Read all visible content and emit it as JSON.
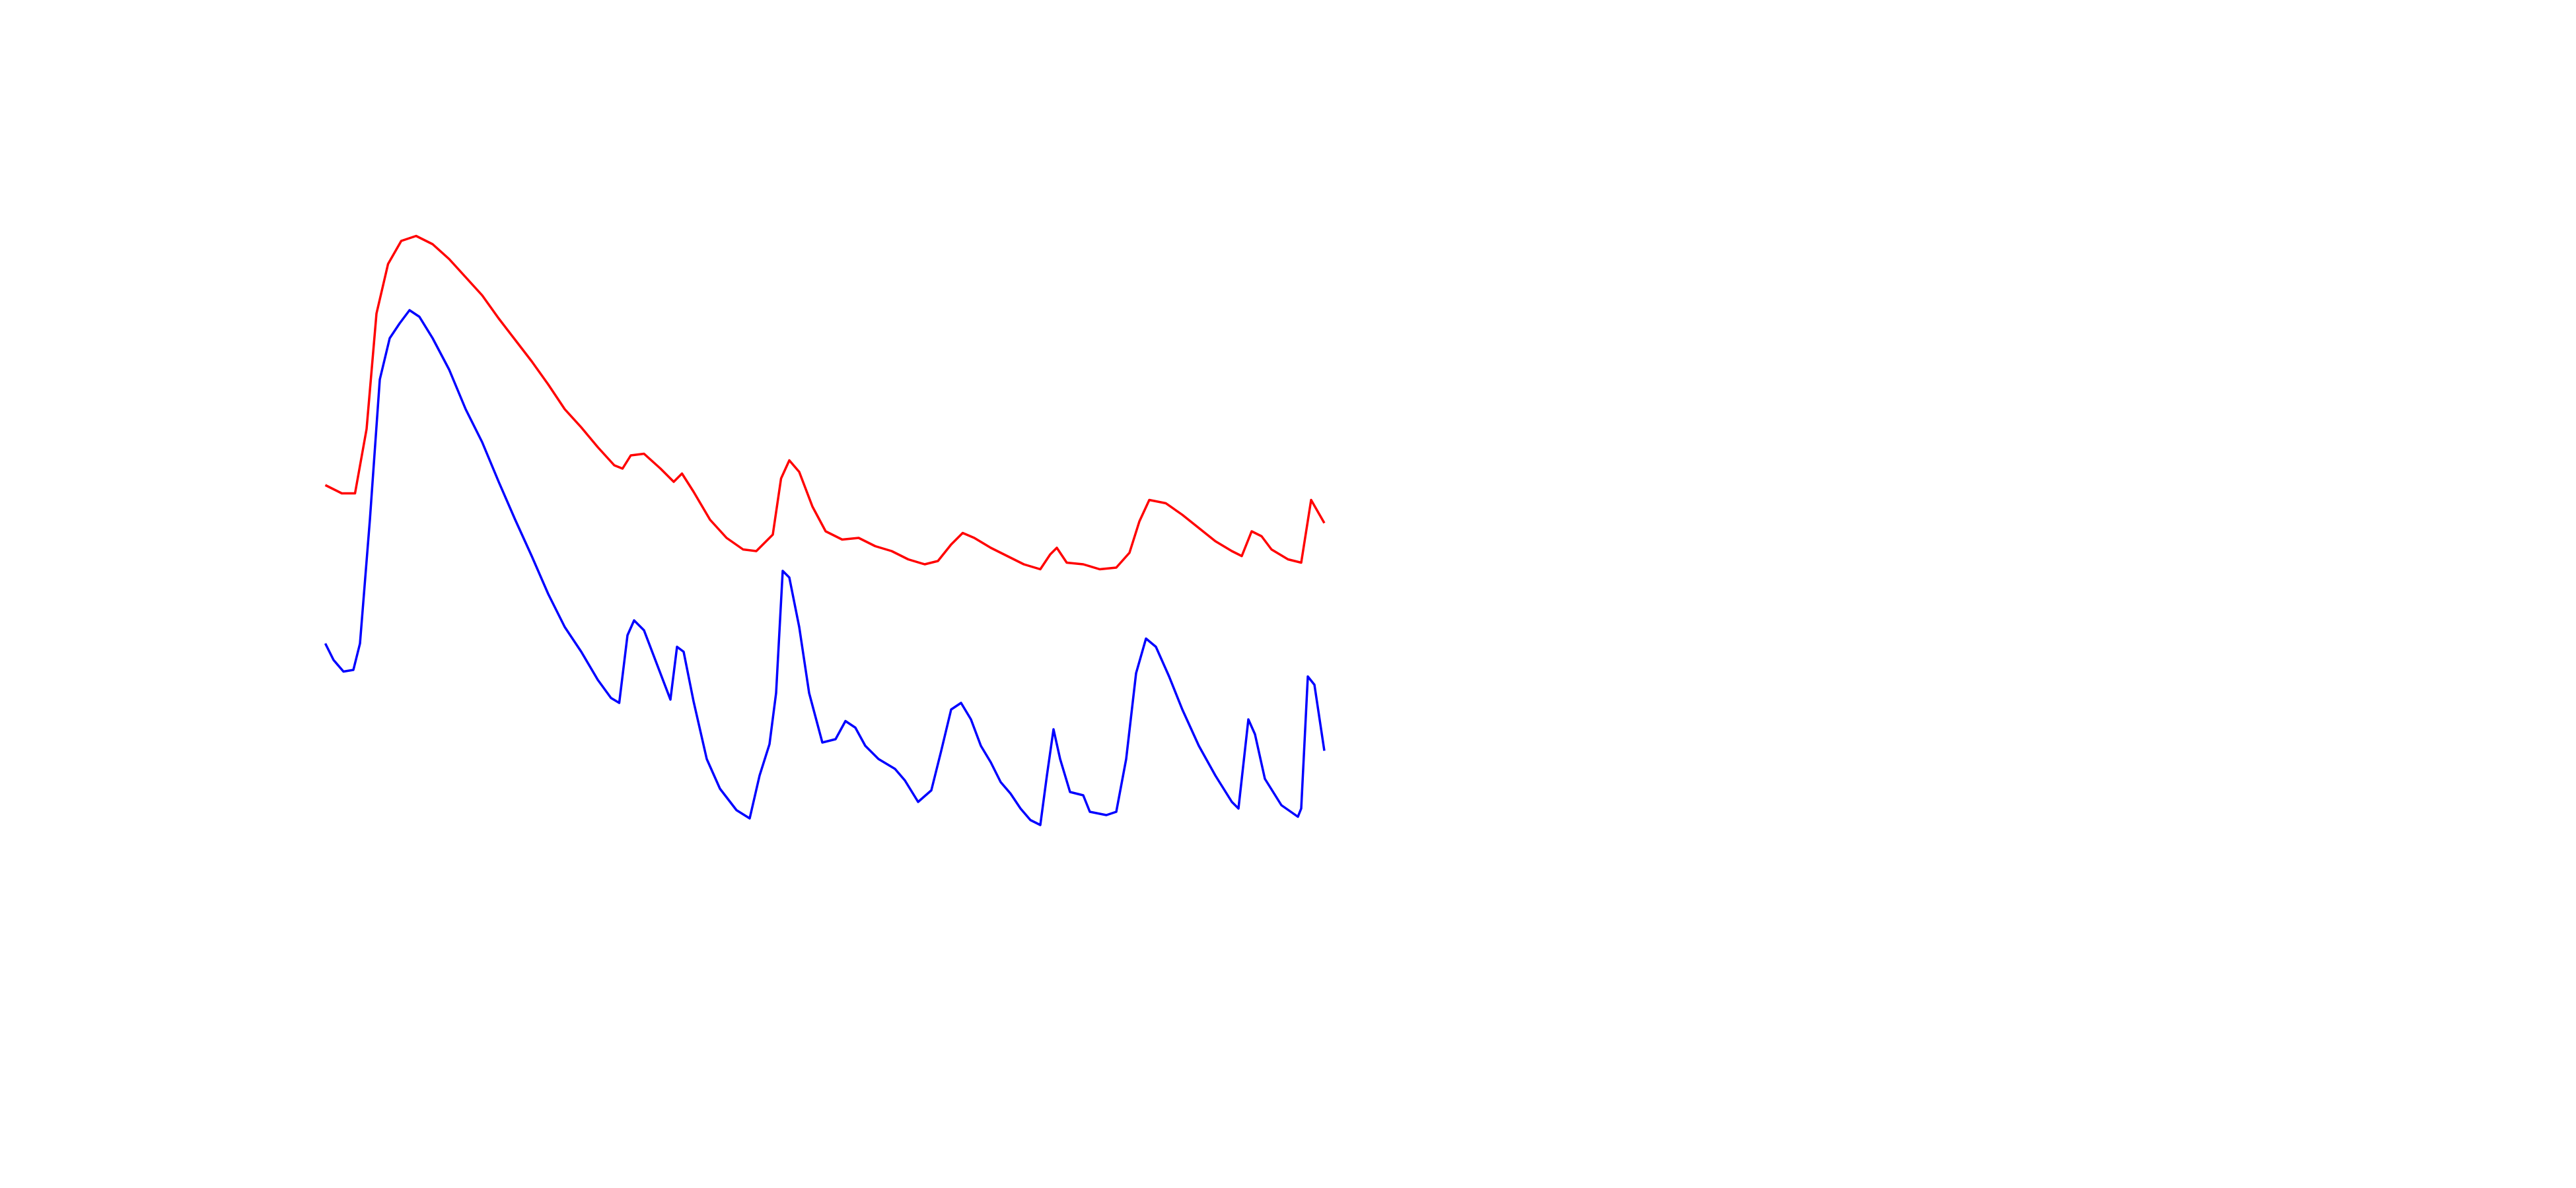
{
  "chart_data": {
    "type": "line",
    "xlim": [
      0,
      1560
    ],
    "ylim": [
      0,
      720
    ],
    "series": [
      {
        "color": "#ff0000",
        "x": [
          197,
          207,
          215,
          222,
          228,
          235,
          243,
          252,
          262,
          272,
          282,
          292,
          302,
          312,
          322,
          332,
          342,
          352,
          362,
          372,
          377,
          382,
          390,
          400,
          408,
          413,
          420,
          430,
          440,
          450,
          458,
          468,
          473,
          478,
          484,
          492,
          500,
          510,
          520,
          530,
          540,
          550,
          560,
          568,
          576,
          583,
          590,
          600,
          610,
          620,
          630,
          636,
          640,
          646,
          656,
          666,
          676,
          684,
          690,
          696,
          706,
          716,
          726,
          736,
          746,
          752,
          758,
          764,
          770,
          780,
          788,
          794,
          802
        ],
        "values": [
          426,
          421,
          421,
          460,
          530,
          560,
          574,
          577,
          572,
          563,
          552,
          541,
          527,
          514,
          501,
          487,
          472,
          461,
          449,
          438,
          436,
          444,
          445,
          436,
          428,
          433,
          422,
          405,
          394,
          387,
          386,
          396,
          430,
          441,
          434,
          413,
          398,
          393,
          394,
          389,
          386,
          381,
          378,
          380,
          390,
          397,
          394,
          388,
          383,
          378,
          375,
          384,
          388,
          379,
          378,
          375,
          376,
          385,
          404,
          417,
          415,
          408,
          400,
          392,
          386,
          383,
          398,
          395,
          387,
          381,
          379,
          417,
          403
        ]
      },
      {
        "color": "#0000ff",
        "x": [
          197,
          202,
          208,
          214,
          218,
          224,
          230,
          236,
          242,
          248,
          254,
          262,
          272,
          282,
          292,
          302,
          312,
          322,
          332,
          342,
          352,
          362,
          370,
          375,
          380,
          384,
          390,
          398,
          406,
          410,
          414,
          420,
          428,
          436,
          446,
          454,
          460,
          466,
          470,
          474,
          478,
          484,
          490,
          498,
          506,
          512,
          518,
          524,
          532,
          542,
          548,
          556,
          564,
          570,
          576,
          582,
          588,
          594,
          600,
          606,
          612,
          618,
          624,
          630,
          634,
          638,
          642,
          648,
          656,
          660,
          670,
          676,
          682,
          688,
          694,
          700,
          708,
          716,
          726,
          736,
          746,
          750,
          756,
          760,
          766,
          776,
          786,
          788,
          792,
          796,
          802
        ],
        "values": [
          330,
          320,
          313,
          314,
          330,
          405,
          490,
          515,
          524,
          532,
          528,
          515,
          496,
          472,
          452,
          428,
          405,
          383,
          360,
          340,
          325,
          308,
          297,
          294,
          335,
          344,
          338,
          317,
          296,
          328,
          325,
          295,
          260,
          242,
          229,
          224,
          250,
          269,
          300,
          374,
          370,
          340,
          300,
          270,
          272,
          283,
          279,
          268,
          260,
          254,
          247,
          234,
          241,
          265,
          290,
          294,
          284,
          268,
          258,
          246,
          239,
          230,
          223,
          220,
          250,
          278,
          260,
          240,
          238,
          228,
          226,
          228,
          260,
          312,
          333,
          328,
          310,
          290,
          268,
          250,
          234,
          230,
          284,
          275,
          248,
          232,
          225,
          230,
          310,
          305,
          265
        ]
      }
    ]
  }
}
